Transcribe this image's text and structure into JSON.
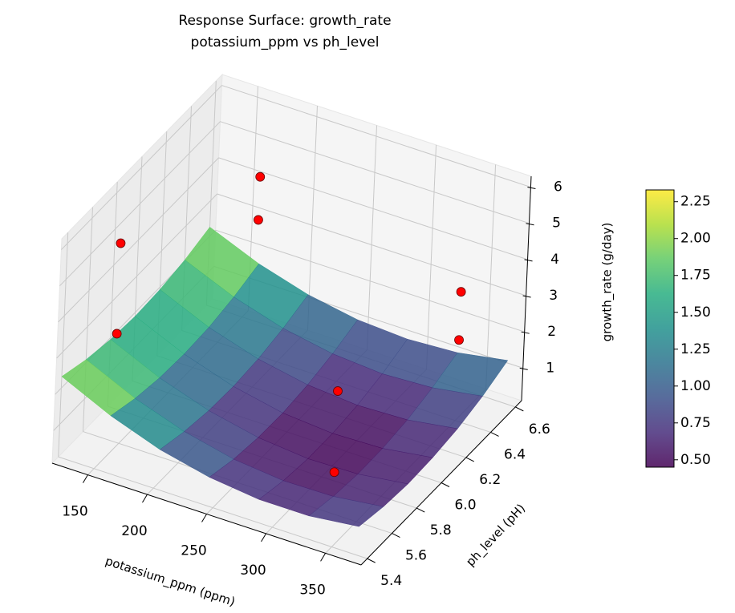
{
  "chart_data": {
    "type": "surface3d",
    "title": "Response Surface: growth_rate",
    "subtitle": "potassium_ppm vs ph_level",
    "x_label": "potassium_ppm (ppm)",
    "y_label": "ph_level (pH)",
    "z_label": "growth_rate (g/day)",
    "xlim": [
      120,
      380
    ],
    "ylim": [
      5.35,
      6.65
    ],
    "zlim": [
      0.1,
      6.3
    ],
    "xticks": [
      150,
      200,
      250,
      300,
      350
    ],
    "yticks": [
      5.4,
      5.6,
      5.8,
      {
        "value": 6.0,
        "label": "6.0"
      },
      6.2,
      6.4,
      6.6
    ],
    "zticks": [
      1,
      2,
      3,
      4,
      5,
      6
    ],
    "colormap": "viridis",
    "clim": [
      0.45,
      2.33
    ],
    "colorbar_ticks": [
      {
        "value": 0.5,
        "label": "0.50"
      },
      {
        "value": 0.75,
        "label": "0.75"
      },
      {
        "value": 1.0,
        "label": "1.00"
      },
      {
        "value": 1.25,
        "label": "1.25"
      },
      {
        "value": 1.5,
        "label": "1.50"
      },
      {
        "value": 1.75,
        "label": "1.75"
      },
      {
        "value": 2.0,
        "label": "2.00"
      },
      {
        "value": 2.25,
        "label": "2.25"
      }
    ],
    "surface": {
      "x": [
        120,
        162,
        204,
        246,
        288,
        330,
        372
      ],
      "y": [
        5.4,
        5.6,
        5.8,
        6.0,
        6.2,
        6.4,
        6.6
      ],
      "z": [
        [
          2.32,
          1.69,
          1.21,
          0.9,
          0.74,
          0.74,
          0.9
        ],
        [
          2.09,
          1.47,
          1.01,
          0.7,
          0.56,
          0.58,
          0.75
        ],
        [
          1.95,
          1.34,
          0.89,
          0.6,
          0.47,
          0.5,
          0.68
        ],
        [
          1.89,
          1.3,
          0.86,
          0.58,
          0.47,
          0.51,
          0.71
        ],
        [
          1.93,
          1.34,
          0.92,
          0.66,
          0.55,
          0.6,
          0.81
        ],
        [
          2.05,
          1.48,
          1.07,
          0.82,
          0.72,
          0.79,
          1.01
        ],
        [
          2.26,
          1.7,
          1.3,
          1.06,
          0.98,
          1.06,
          1.3
        ]
      ]
    },
    "points": {
      "color": "#ff0000",
      "x": [
        125,
        125,
        160,
        160,
        370,
        370,
        330,
        330
      ],
      "y": [
        5.8,
        5.8,
        6.6,
        6.6,
        6.2,
        6.2,
        5.6,
        5.6
      ],
      "z": [
        4.66,
        2.16,
        4.08,
        2.89,
        4.57,
        3.24,
        3.49,
        1.25
      ]
    }
  }
}
